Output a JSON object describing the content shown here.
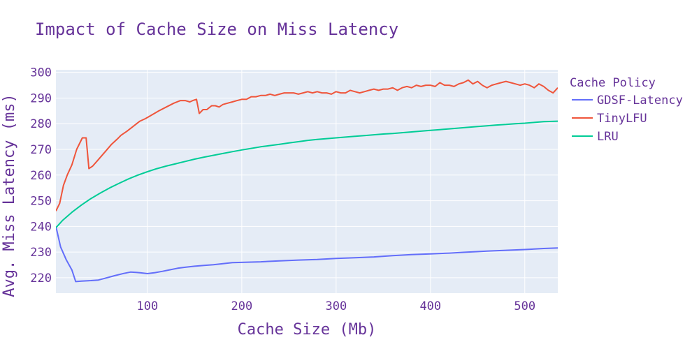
{
  "chart_data": {
    "type": "line",
    "title": "Impact of Cache Size on Miss Latency",
    "xlabel": "Cache Size (Mb)",
    "ylabel": "Avg. Miss Latency (ms)",
    "xlim": [
      3,
      535
    ],
    "ylim": [
      214,
      301
    ],
    "x_ticks": [
      100,
      200,
      300,
      400,
      500
    ],
    "y_ticks": [
      220,
      230,
      240,
      250,
      260,
      270,
      280,
      290,
      300
    ],
    "grid": true,
    "legend": {
      "title": "Cache Policy",
      "position": "right"
    },
    "series": [
      {
        "name": "GDSF-Latency",
        "color": "#636efa",
        "x": [
          3,
          8,
          14,
          20,
          24,
          30,
          40,
          48,
          55,
          65,
          75,
          82,
          88,
          93,
          100,
          108,
          116,
          124,
          132,
          140,
          150,
          160,
          170,
          180,
          190,
          200,
          210,
          220,
          240,
          260,
          280,
          300,
          320,
          340,
          360,
          380,
          400,
          420,
          440,
          460,
          480,
          500,
          520,
          535
        ],
        "y": [
          240,
          232,
          227,
          223,
          218.5,
          218.7,
          218.9,
          219.1,
          219.8,
          220.8,
          221.7,
          222.2,
          222.1,
          221.9,
          221.6,
          222.0,
          222.5,
          223.1,
          223.7,
          224.1,
          224.5,
          224.8,
          225.1,
          225.5,
          225.9,
          226.0,
          226.1,
          226.2,
          226.6,
          226.9,
          227.1,
          227.5,
          227.8,
          228.1,
          228.6,
          229.0,
          229.3,
          229.6,
          230.0,
          230.4,
          230.7,
          231.0,
          231.4,
          231.6
        ]
      },
      {
        "name": "TinyLFU",
        "color": "#ef553b",
        "x": [
          3,
          7,
          11,
          15,
          20,
          25,
          31,
          35,
          38,
          42,
          48,
          55,
          62,
          68,
          72,
          78,
          85,
          92,
          98,
          105,
          112,
          120,
          128,
          135,
          140,
          145,
          148,
          152,
          155,
          159,
          163,
          168,
          172,
          176,
          180,
          185,
          190,
          195,
          200,
          205,
          210,
          215,
          220,
          225,
          230,
          235,
          240,
          245,
          250,
          255,
          260,
          265,
          270,
          275,
          280,
          285,
          290,
          295,
          300,
          305,
          310,
          315,
          320,
          325,
          330,
          335,
          340,
          345,
          350,
          355,
          360,
          365,
          370,
          375,
          380,
          385,
          390,
          395,
          400,
          405,
          410,
          415,
          420,
          425,
          430,
          435,
          440,
          445,
          450,
          455,
          460,
          465,
          470,
          475,
          480,
          485,
          490,
          495,
          500,
          505,
          510,
          515,
          520,
          525,
          530,
          535
        ],
        "y": [
          246,
          249,
          256,
          260,
          264,
          270,
          274.5,
          274.5,
          262.5,
          263.5,
          266,
          269,
          272,
          274,
          275.5,
          277,
          279,
          281,
          282,
          283.5,
          285,
          286.5,
          288,
          289,
          289,
          288.5,
          289,
          289.5,
          284,
          285.5,
          285.5,
          287,
          287,
          286.5,
          287.5,
          288,
          288.5,
          289,
          289.5,
          289.5,
          290.5,
          290.5,
          291,
          291,
          291.5,
          291,
          291.5,
          292,
          292,
          292,
          291.5,
          292,
          292.5,
          292,
          292.5,
          292,
          292,
          291.5,
          292.5,
          292,
          292,
          293,
          292.5,
          292,
          292.5,
          293,
          293.5,
          293,
          293.5,
          293.5,
          294,
          293,
          294,
          294.5,
          294,
          295,
          294.5,
          295,
          295,
          294.5,
          296,
          295,
          295,
          294.5,
          295.5,
          296,
          297,
          295.5,
          296.5,
          295,
          294,
          295,
          295.5,
          296,
          296.5,
          296,
          295.5,
          295,
          295.5,
          295,
          294,
          295.5,
          294.5,
          293,
          292,
          294
        ]
      },
      {
        "name": "LRU",
        "color": "#00cc96",
        "x": [
          3,
          10,
          20,
          30,
          40,
          50,
          60,
          70,
          80,
          90,
          100,
          110,
          120,
          130,
          140,
          150,
          160,
          170,
          180,
          190,
          200,
          210,
          220,
          230,
          240,
          250,
          260,
          270,
          280,
          290,
          300,
          310,
          320,
          330,
          340,
          350,
          360,
          370,
          380,
          390,
          400,
          410,
          420,
          430,
          440,
          450,
          460,
          470,
          480,
          490,
          500,
          510,
          520,
          535
        ],
        "y": [
          239.5,
          242.3,
          245.5,
          248.3,
          250.8,
          253,
          255,
          256.8,
          258.5,
          260,
          261.3,
          262.5,
          263.5,
          264.4,
          265.3,
          266.2,
          267,
          267.7,
          268.4,
          269.1,
          269.8,
          270.4,
          271,
          271.5,
          272,
          272.5,
          273,
          273.5,
          273.9,
          274.2,
          274.5,
          274.8,
          275.1,
          275.4,
          275.7,
          276,
          276.2,
          276.5,
          276.8,
          277.1,
          277.4,
          277.7,
          278,
          278.3,
          278.6,
          278.9,
          279.2,
          279.5,
          279.7,
          280,
          280.2,
          280.5,
          280.8,
          281
        ]
      }
    ]
  }
}
